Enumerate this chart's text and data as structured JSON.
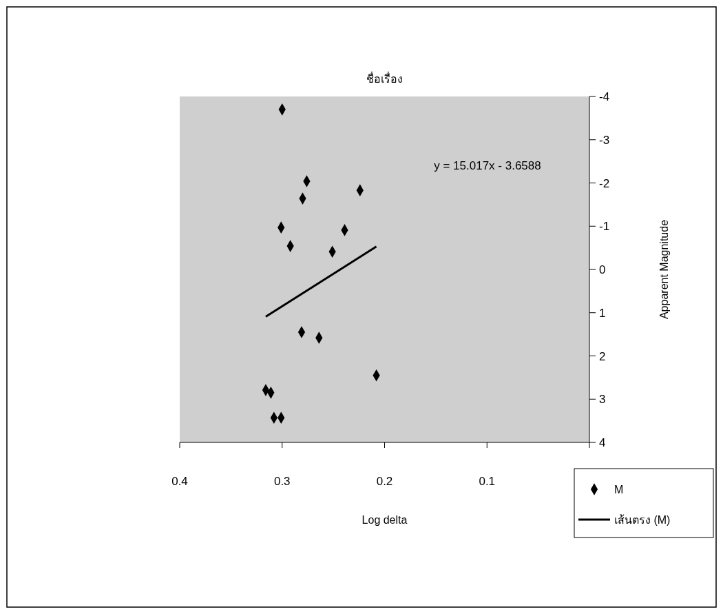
{
  "chart_data": {
    "type": "scatter",
    "title": "ชื่อเรื่อง",
    "xlabel": "Log delta",
    "ylabel": "Apparent Magnitude",
    "xlim": [
      0.4,
      0
    ],
    "xticks": [
      0.4,
      0.3,
      0.2,
      0.1,
      {
        "value": 0,
        "label": null
      }
    ],
    "ylim": [
      4,
      -4
    ],
    "yticks": [
      -4,
      -3,
      -2,
      -1,
      0,
      1,
      2,
      3,
      4
    ],
    "grid": false,
    "legend": "bottom right",
    "marker": "diamond",
    "annotations": [
      "y = 15.017x - 3.6588"
    ],
    "series": [
      {
        "name": "M",
        "color": "#000000",
        "x": [
          0.3,
          0.276,
          0.28,
          0.224,
          0.301,
          0.292,
          0.239,
          0.251,
          0.281,
          0.264,
          0.316,
          0.311,
          0.208,
          0.308,
          0.301
        ],
        "values": [
          -3.7,
          -2.04,
          -1.64,
          -1.83,
          -0.97,
          -0.54,
          -0.91,
          -0.41,
          1.45,
          1.58,
          2.79,
          2.85,
          2.45,
          3.43,
          3.43
        ]
      },
      {
        "name": "เส้นตรง (M)",
        "type": "line",
        "marker": "none",
        "color": "#000000",
        "x": [
          0.316,
          0.208
        ],
        "values": [
          1.09,
          -0.53
        ]
      }
    ]
  }
}
